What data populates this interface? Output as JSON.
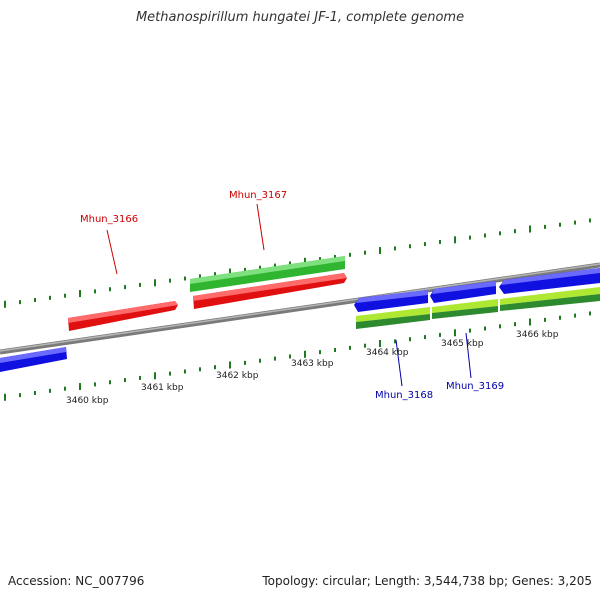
{
  "header": {
    "title": "Methanospirillum hungatei JF-1, complete genome"
  },
  "footer": {
    "accession": "Accession: NC_007796",
    "stats": "Topology: circular; Length: 3,544,738 bp; Genes: 3,205"
  },
  "scale": {
    "tick_labels": [
      "3460 kbp",
      "3461 kbp",
      "3462 kbp",
      "3463 kbp",
      "3464 kbp",
      "3465 kbp",
      "3466 kbp"
    ]
  },
  "genes": {
    "labels": [
      "Mhun_3166",
      "Mhun_3167",
      "Mhun_3168",
      "Mhun_3169"
    ]
  },
  "colors": {
    "backbone": "#8a8a8a",
    "tick": "#1f7a1f",
    "red_gene": "#e01010",
    "red_label": "#cc0000",
    "green_gene": "#2fb52f",
    "lime_gene": "#aee833",
    "dark_green_gene": "#2e8a2e",
    "blue_gene": "#1010e0",
    "blue_label": "#0000aa"
  }
}
